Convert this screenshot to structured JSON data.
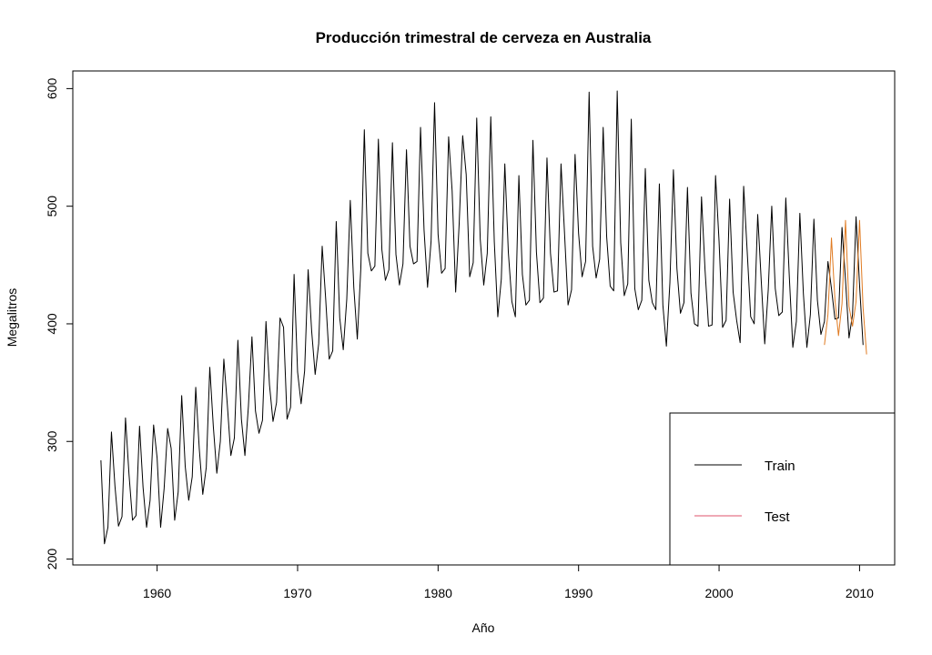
{
  "chart_data": {
    "type": "line",
    "title": "Producción trimestral de cerveza en Australia",
    "xlabel": "Año",
    "ylabel": "Megalitros",
    "xlim": [
      1954.0,
      2012.5
    ],
    "ylim": [
      195,
      615
    ],
    "xticks": [
      1960,
      1970,
      1980,
      1990,
      2000,
      2010
    ],
    "yticks": [
      200,
      300,
      400,
      500,
      600
    ],
    "grid": false,
    "legend_position": "bottom-right",
    "series": [
      {
        "name": "Train",
        "color": "#000000",
        "start": 1956.0,
        "step": 0.25,
        "values": [
          284,
          213,
          227,
          308,
          262,
          228,
          236,
          320,
          272,
          233,
          237,
          313,
          261,
          227,
          250,
          314,
          286,
          227,
          260,
          311,
          294,
          233,
          257,
          339,
          279,
          250,
          270,
          346,
          294,
          255,
          278,
          363,
          313,
          273,
          300,
          370,
          331,
          288,
          303,
          386,
          319,
          288,
          330,
          389,
          326,
          307,
          318,
          402,
          348,
          317,
          333,
          405,
          397,
          319,
          329,
          442,
          359,
          332,
          360,
          446,
          394,
          357,
          383,
          466,
          421,
          370,
          377,
          487,
          405,
          378,
          421,
          505,
          431,
          387,
          447,
          565,
          460,
          445,
          449,
          557,
          463,
          437,
          446,
          554,
          459,
          433,
          451,
          548,
          466,
          451,
          453,
          567,
          480,
          431,
          470,
          588,
          476,
          443,
          447,
          559,
          513,
          427,
          485,
          560,
          527,
          440,
          452,
          575,
          472,
          433,
          460,
          576,
          470,
          406,
          438,
          536,
          461,
          419,
          406,
          526,
          442,
          416,
          420,
          556,
          461,
          418,
          422,
          541,
          460,
          427,
          428,
          536,
          477,
          416,
          429,
          544,
          477,
          440,
          453,
          597,
          466,
          439,
          455,
          567,
          474,
          432,
          428,
          598,
          469,
          424,
          434,
          574,
          430,
          412,
          420,
          532,
          437,
          418,
          412,
          519,
          416,
          381,
          435,
          531,
          447,
          409,
          418,
          516,
          426,
          400,
          398,
          508,
          446,
          398,
          399,
          526,
          470,
          397,
          403,
          506,
          427,
          403,
          384,
          517,
          462,
          406,
          400,
          493,
          437,
          383,
          429,
          500,
          430,
          407,
          410,
          507,
          440,
          380,
          402,
          494,
          426,
          380,
          408,
          489,
          420,
          391,
          402,
          453,
          430,
          404,
          405,
          482,
          437,
          388,
          408,
          491,
          433,
          382
        ]
      },
      {
        "name": "Test",
        "color": "#e07b22",
        "start": 2007.5,
        "step": 0.25,
        "values": [
          382,
          408,
          473,
          420,
          390,
          417,
          488,
          415,
          398,
          419,
          488,
          414,
          374
        ]
      }
    ]
  }
}
